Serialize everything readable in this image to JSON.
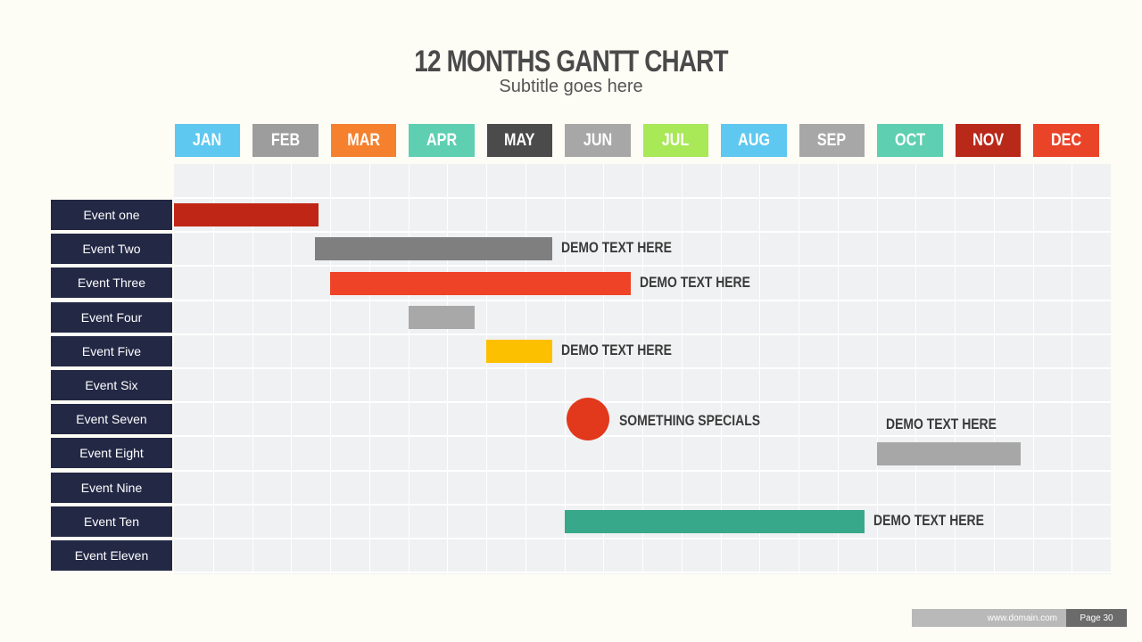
{
  "title": "12 MONTHS GANTT CHART",
  "subtitle": "Subtitle goes here",
  "footer": {
    "domain": "www.domain.com",
    "page": "Page 30"
  },
  "chart_data": {
    "type": "gantt",
    "categories": [
      "JAN",
      "FEB",
      "MAR",
      "APR",
      "MAY",
      "JUN",
      "JUL",
      "AUG",
      "SEP",
      "OCT",
      "NOV",
      "DEC"
    ],
    "category_colors": [
      "#5ec8f0",
      "#9d9d9d",
      "#f5812e",
      "#5fcfb2",
      "#4b4b4b",
      "#a7a7a7",
      "#a9e857",
      "#5ec8f0",
      "#a7a7a7",
      "#5fcfb2",
      "#b8291a",
      "#ea4428"
    ],
    "rows": [
      "Event one",
      "Event Two",
      "Event Three",
      "Event Four",
      "Event Five",
      "Event Six",
      "Event Seven",
      "Event Eight",
      "Event Nine",
      "Event Ten",
      "Event Eleven"
    ],
    "tasks": [
      {
        "row": 0,
        "start": 0,
        "end": 1.85,
        "color": "#c02615",
        "label": ""
      },
      {
        "row": 1,
        "start": 1.8,
        "end": 4.85,
        "color": "#7f7f7f",
        "label": "DEMO TEXT HERE"
      },
      {
        "row": 2,
        "start": 2.0,
        "end": 5.85,
        "color": "#ef4327",
        "label": "DEMO TEXT HERE"
      },
      {
        "row": 3,
        "start": 3.0,
        "end": 3.85,
        "color": "#a8a8a8",
        "label": ""
      },
      {
        "row": 4,
        "start": 4.0,
        "end": 4.85,
        "color": "#fcc000",
        "label": "DEMO TEXT HERE"
      },
      {
        "row": 7,
        "start": 9.0,
        "end": 10.85,
        "color": "#a7a7a7",
        "label": "DEMO TEXT HERE",
        "label_position": "above"
      },
      {
        "row": 9,
        "start": 5.0,
        "end": 8.85,
        "color": "#38a88b",
        "label": "DEMO TEXT HERE"
      }
    ],
    "milestones": [
      {
        "row": 6,
        "at": 5.3,
        "color": "#e2381c",
        "label": "SOMETHING SPECIALS"
      }
    ]
  }
}
